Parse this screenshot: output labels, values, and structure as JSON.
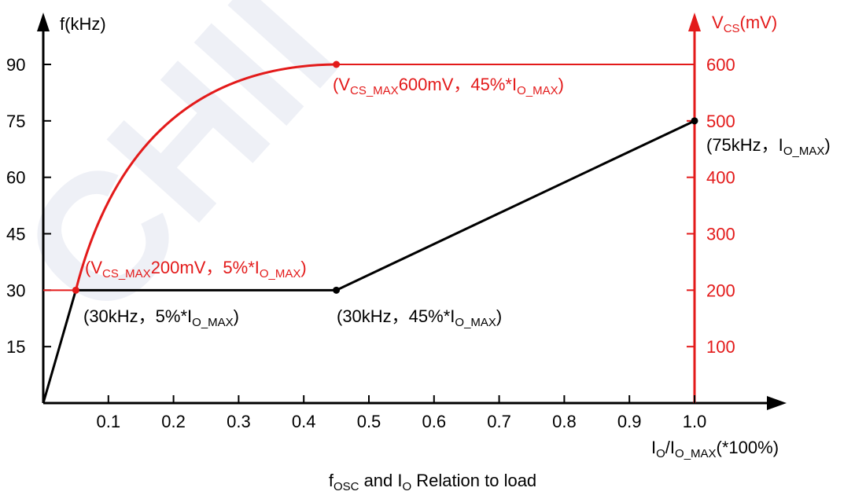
{
  "chart_data": {
    "type": "line",
    "title": {
      "parts": [
        {
          "t": "f"
        },
        {
          "t": "OSC",
          "sub": true
        },
        {
          "t": " and I"
        },
        {
          "t": "O",
          "sub": true
        },
        {
          "t": " Relation to load"
        }
      ]
    },
    "xlabel": {
      "parts": [
        {
          "t": "I"
        },
        {
          "t": "O",
          "sub": true
        },
        {
          "t": "/I"
        },
        {
          "t": "O_MAX",
          "sub": true
        },
        {
          "t": "(*100%)"
        }
      ]
    },
    "ylabel_left": {
      "parts": [
        {
          "t": "f(kHz)"
        }
      ]
    },
    "ylabel_right": {
      "parts": [
        {
          "t": "V"
        },
        {
          "t": "CS",
          "sub": true
        },
        {
          "t": "(mV)"
        }
      ]
    },
    "xlim": [
      0,
      1.0
    ],
    "ylim_left": [
      0,
      105
    ],
    "ylim_right": [
      0,
      700
    ],
    "x_ticks": [
      "0.1",
      "0.2",
      "0.3",
      "0.4",
      "0.5",
      "0.6",
      "0.7",
      "0.8",
      "0.9",
      "1.0"
    ],
    "y_ticks_left": [
      "15",
      "30",
      "45",
      "60",
      "75",
      "90"
    ],
    "y_ticks_right": [
      "100",
      "200",
      "300",
      "400",
      "500",
      "600"
    ],
    "series": [
      {
        "axis": "left",
        "color": "#000000",
        "x": [
          0,
          0.05,
          0.45,
          1.0
        ],
        "y": [
          0,
          30,
          30,
          75
        ],
        "markers": [
          {
            "x": 0.45,
            "y": 30
          },
          {
            "x": 1.0,
            "y": 75
          }
        ]
      },
      {
        "axis": "right",
        "color": "#e31a1a",
        "x": [
          0,
          0.05,
          0.45,
          1.0
        ],
        "y": [
          200,
          200,
          600,
          600
        ],
        "curve_segment": [
          0.05,
          0.45
        ],
        "markers": [
          {
            "x": 0.05,
            "y": 200
          },
          {
            "x": 0.45,
            "y": 600
          }
        ]
      }
    ],
    "annotations": [
      {
        "color": "#e31a1a",
        "parts": [
          {
            "t": "(V"
          },
          {
            "t": "CS_MAX",
            "sub": true
          },
          {
            "t": "600mV，45%*I"
          },
          {
            "t": "O_MAX",
            "sub": true
          },
          {
            "t": ")"
          }
        ]
      },
      {
        "color": "#000000",
        "parts": [
          {
            "t": "(75kHz，I"
          },
          {
            "t": "O_MAX",
            "sub": true
          },
          {
            "t": ")"
          }
        ]
      },
      {
        "color": "#e31a1a",
        "parts": [
          {
            "t": "(V"
          },
          {
            "t": "CS_MAX",
            "sub": true
          },
          {
            "t": "200mV，5%*I"
          },
          {
            "t": "O_MAX",
            "sub": true
          },
          {
            "t": ")"
          }
        ]
      },
      {
        "color": "#000000",
        "parts": [
          {
            "t": "(30kHz，5%*I"
          },
          {
            "t": "O_MAX",
            "sub": true
          },
          {
            "t": ")"
          }
        ]
      },
      {
        "color": "#000000",
        "parts": [
          {
            "t": "(30kHz，45%*I"
          },
          {
            "t": "O_MAX",
            "sub": true
          },
          {
            "t": ")"
          }
        ]
      }
    ],
    "grid": false,
    "legend": "none"
  },
  "watermark": {
    "text": "CHII"
  }
}
